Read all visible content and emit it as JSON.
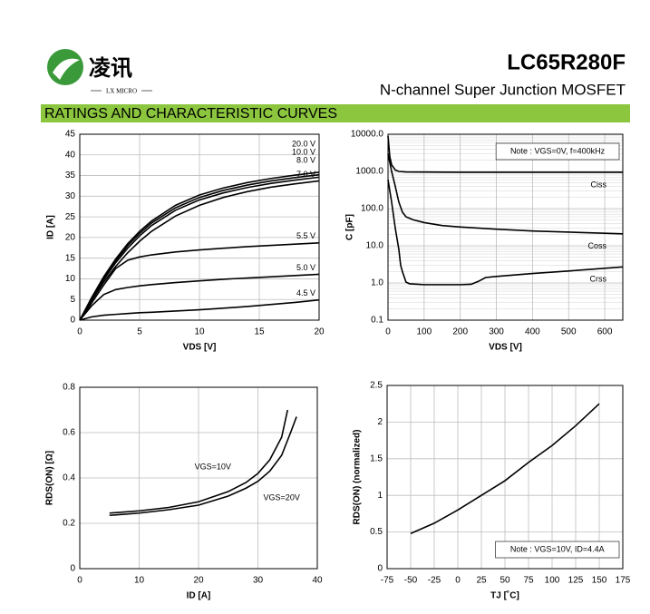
{
  "header": {
    "logo_text": "凌讯",
    "logo_subtext": "LX MICRO",
    "part_number": "LC65R280F",
    "subtitle": "N-channel Super Junction MOSFET"
  },
  "section_title": "RATINGS AND CHARACTERISTIC CURVES",
  "chart_data": [
    {
      "type": "line",
      "x_label": "VDS [V]",
      "y_label": "ID [A]",
      "xlim": [
        0,
        20
      ],
      "xticks": [
        0,
        5,
        10,
        15,
        20
      ],
      "ylim": [
        0,
        45
      ],
      "yticks": [
        0,
        5,
        10,
        15,
        20,
        25,
        30,
        35,
        40,
        45
      ],
      "grid": true,
      "series": [
        {
          "name": "20.0 V",
          "color": "#000000",
          "x": [
            0,
            1,
            2,
            3,
            4,
            5,
            6,
            8,
            10,
            12,
            14,
            16,
            18,
            20
          ],
          "values": [
            0,
            5.5,
            10.5,
            14.8,
            18.5,
            21.5,
            24,
            27.8,
            30.3,
            32,
            33.3,
            34.3,
            35.1,
            35.8
          ]
        },
        {
          "name": "10.0 V",
          "color": "#000000",
          "x": [
            0,
            1,
            2,
            3,
            4,
            5,
            6,
            8,
            10,
            12,
            14,
            16,
            18,
            20
          ],
          "values": [
            0,
            5.3,
            10.2,
            14.4,
            18,
            21,
            23.5,
            27.2,
            29.7,
            31.4,
            32.7,
            33.7,
            34.5,
            35.2
          ]
        },
        {
          "name": "8.0 V",
          "color": "#000000",
          "x": [
            0,
            1,
            2,
            3,
            4,
            5,
            6,
            8,
            10,
            12,
            14,
            16,
            18,
            20
          ],
          "values": [
            0,
            5.1,
            9.8,
            13.9,
            17.4,
            20.4,
            22.9,
            26.6,
            29.1,
            30.8,
            32.1,
            33.1,
            33.9,
            34.6
          ]
        },
        {
          "name": "7.0 V",
          "color": "#000000",
          "x": [
            0,
            1,
            2,
            3,
            4,
            5,
            6,
            8,
            10,
            12,
            14,
            16,
            18,
            20
          ],
          "values": [
            0,
            4.8,
            9.2,
            13,
            16.3,
            19.1,
            21.5,
            25.2,
            27.8,
            29.7,
            31.1,
            32.2,
            33,
            33.7
          ]
        },
        {
          "name": "5.5 V",
          "color": "#000000",
          "x": [
            0,
            1,
            2,
            3,
            4,
            5,
            6,
            8,
            10,
            12,
            14,
            16,
            18,
            20
          ],
          "values": [
            0,
            4.2,
            8.5,
            12.5,
            14.5,
            15.3,
            15.8,
            16.5,
            17,
            17.4,
            17.8,
            18.1,
            18.4,
            18.7
          ]
        },
        {
          "name": "5.0 V",
          "color": "#000000",
          "x": [
            0,
            1,
            2,
            3,
            4,
            5,
            6,
            8,
            10,
            12,
            14,
            16,
            18,
            20
          ],
          "values": [
            0,
            3.5,
            6.2,
            7.4,
            7.9,
            8.3,
            8.6,
            9.1,
            9.5,
            9.9,
            10.2,
            10.5,
            10.8,
            11.1
          ]
        },
        {
          "name": "4.5 V",
          "color": "#000000",
          "x": [
            0,
            1,
            2,
            3,
            4,
            5,
            6,
            8,
            10,
            12,
            14,
            16,
            18,
            20
          ],
          "values": [
            0,
            0.8,
            1.2,
            1.4,
            1.6,
            1.8,
            1.9,
            2.2,
            2.5,
            2.9,
            3.3,
            3.8,
            4.3,
            4.9
          ]
        }
      ]
    },
    {
      "type": "line",
      "x_label": "VDS [V]",
      "y_label": "C [pF]",
      "log_y": true,
      "note": "Note : VGS=0V, f=400kHz",
      "xlim": [
        0,
        650
      ],
      "xticks": [
        0,
        100,
        200,
        300,
        400,
        500,
        600
      ],
      "ylim": [
        0.1,
        10000
      ],
      "yticks": [
        0.1,
        {
          "value": 1,
          "label": "1.0"
        },
        {
          "value": 10,
          "label": "10.0"
        },
        {
          "value": 100,
          "label": "100.0"
        },
        {
          "value": 1000,
          "label": "1000.0"
        },
        {
          "value": 10000,
          "label": "10000.0"
        }
      ],
      "grid": true,
      "series": [
        {
          "name": "Ciss",
          "color": "#000000",
          "x": [
            0,
            5,
            10,
            20,
            30,
            50,
            100,
            200,
            400,
            650
          ],
          "values": [
            9000,
            2500,
            1500,
            1100,
            1000,
            970,
            960,
            950,
            950,
            950
          ]
        },
        {
          "name": "Coss",
          "color": "#000000",
          "x": [
            0,
            10,
            20,
            30,
            40,
            50,
            70,
            100,
            150,
            200,
            300,
            400,
            650
          ],
          "values": [
            3000,
            1000,
            400,
            150,
            80,
            60,
            50,
            42,
            35,
            32,
            28,
            25,
            21
          ]
        },
        {
          "name": "Crss",
          "color": "#000000",
          "x": [
            0,
            10,
            20,
            30,
            35,
            40,
            50,
            60,
            100,
            200,
            230,
            250,
            270,
            300,
            400,
            500,
            650
          ],
          "values": [
            600,
            150,
            30,
            8,
            3,
            2,
            1.05,
            0.95,
            0.9,
            0.9,
            0.92,
            1.1,
            1.4,
            1.5,
            1.8,
            2.1,
            2.7
          ]
        }
      ]
    },
    {
      "type": "line",
      "x_label": "ID [A]",
      "y_label": "RDS(ON) [Ω]",
      "xlim": [
        0,
        40
      ],
      "xticks": [
        0,
        10,
        20,
        30,
        40
      ],
      "ylim": [
        0,
        0.8
      ],
      "yticks": [
        0,
        0.2,
        0.4,
        0.6,
        0.8
      ],
      "grid": true,
      "series": [
        {
          "name": "VGS=10V",
          "color": "#000000",
          "x": [
            5,
            10,
            15,
            20,
            25,
            28,
            30,
            32,
            34,
            35
          ],
          "values": [
            0.245,
            0.255,
            0.27,
            0.295,
            0.34,
            0.38,
            0.42,
            0.48,
            0.58,
            0.7
          ]
        },
        {
          "name": "VGS=20V",
          "color": "#000000",
          "x": [
            5,
            10,
            15,
            20,
            25,
            28,
            30,
            32,
            34,
            35.5,
            36.5
          ],
          "values": [
            0.235,
            0.245,
            0.26,
            0.28,
            0.32,
            0.355,
            0.385,
            0.43,
            0.5,
            0.6,
            0.67
          ]
        }
      ]
    },
    {
      "type": "line",
      "x_label": "TJ [˚C]",
      "y_label": "RDS(ON) (normalized)",
      "note": "Note : VGS=10V, ID=4.4A",
      "xlim": [
        -75,
        175
      ],
      "xticks": [
        -75,
        -50,
        -25,
        0,
        25,
        50,
        75,
        100,
        125,
        150,
        175
      ],
      "ylim": [
        0,
        2.5
      ],
      "yticks": [
        0,
        0.5,
        1,
        1.5,
        2,
        2.5
      ],
      "grid": true,
      "series": [
        {
          "name": "RDS(ON)",
          "color": "#000000",
          "x": [
            -50,
            -25,
            0,
            25,
            50,
            75,
            100,
            125,
            150
          ],
          "values": [
            0.48,
            0.62,
            0.8,
            1.0,
            1.2,
            1.45,
            1.68,
            1.95,
            2.25
          ]
        }
      ]
    }
  ]
}
